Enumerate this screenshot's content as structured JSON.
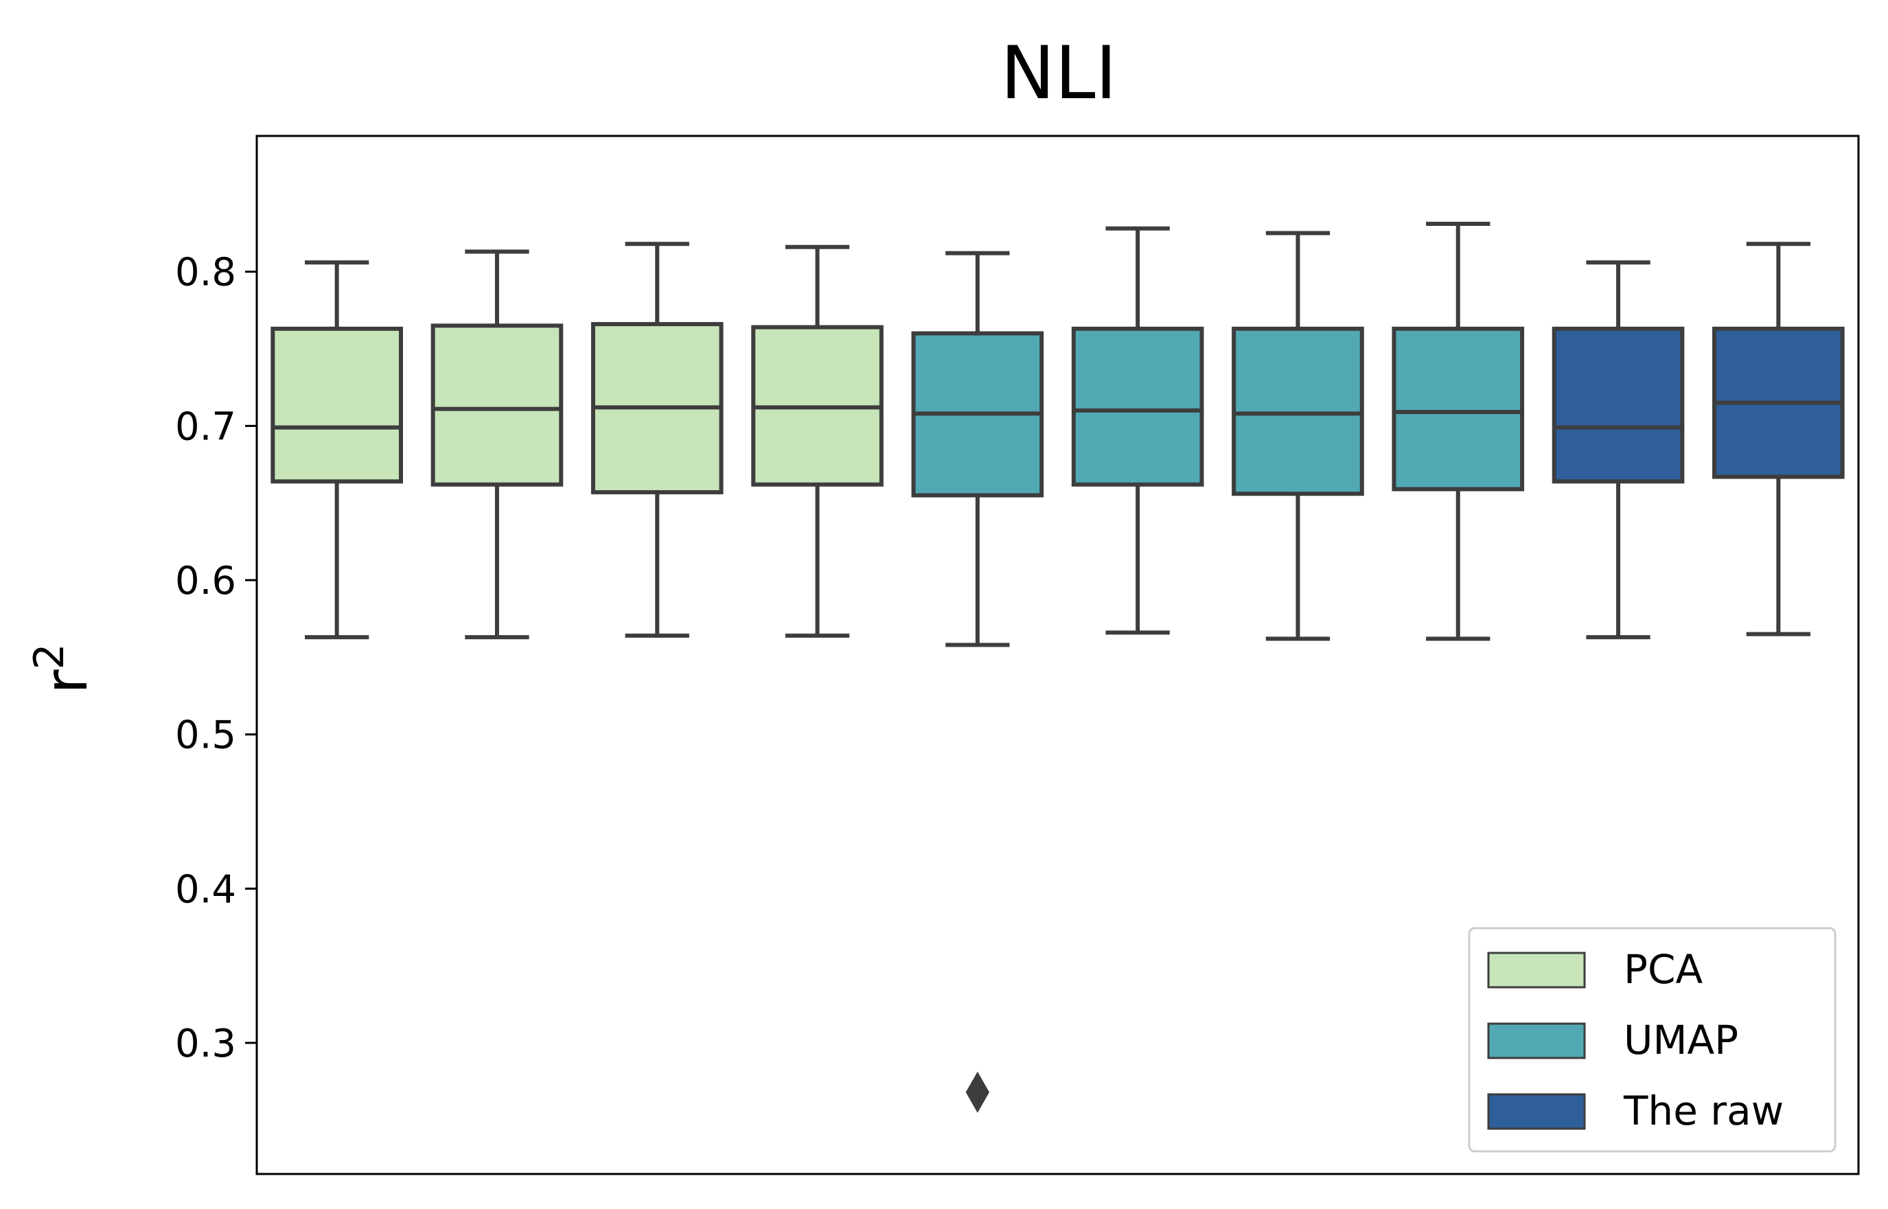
{
  "chart_data": {
    "type": "box",
    "title": "NLI",
    "xlabel": "",
    "ylabel": "r",
    "ylabel_superscript": "2",
    "ylim": [
      0.215,
      0.888
    ],
    "yticks": [
      0.3,
      0.4,
      0.5,
      0.6,
      0.7,
      0.8
    ],
    "ytick_labels": [
      "0.3",
      "0.4",
      "0.5",
      "0.6",
      "0.7",
      "0.8"
    ],
    "grid": false,
    "legend_position": "lower-right",
    "groups": [
      {
        "name": "PCA",
        "color": "#c7e5b9"
      },
      {
        "name": "UMAP",
        "color": "#52a9b4"
      },
      {
        "name": "The raw",
        "color": "#2f5f9a"
      }
    ],
    "edge_color": "#3d3d3d",
    "boxes": [
      {
        "group": "PCA",
        "whisker_low": 0.563,
        "q1": 0.664,
        "median": 0.699,
        "q3": 0.763,
        "whisker_high": 0.806,
        "outliers": []
      },
      {
        "group": "PCA",
        "whisker_low": 0.563,
        "q1": 0.662,
        "median": 0.711,
        "q3": 0.765,
        "whisker_high": 0.813,
        "outliers": []
      },
      {
        "group": "PCA",
        "whisker_low": 0.564,
        "q1": 0.657,
        "median": 0.712,
        "q3": 0.766,
        "whisker_high": 0.818,
        "outliers": []
      },
      {
        "group": "PCA",
        "whisker_low": 0.564,
        "q1": 0.662,
        "median": 0.712,
        "q3": 0.764,
        "whisker_high": 0.816,
        "outliers": []
      },
      {
        "group": "UMAP",
        "whisker_low": 0.558,
        "q1": 0.655,
        "median": 0.708,
        "q3": 0.76,
        "whisker_high": 0.812,
        "outliers": [
          0.268
        ]
      },
      {
        "group": "UMAP",
        "whisker_low": 0.566,
        "q1": 0.662,
        "median": 0.71,
        "q3": 0.763,
        "whisker_high": 0.828,
        "outliers": []
      },
      {
        "group": "UMAP",
        "whisker_low": 0.562,
        "q1": 0.656,
        "median": 0.708,
        "q3": 0.763,
        "whisker_high": 0.825,
        "outliers": []
      },
      {
        "group": "UMAP",
        "whisker_low": 0.562,
        "q1": 0.659,
        "median": 0.709,
        "q3": 0.763,
        "whisker_high": 0.831,
        "outliers": []
      },
      {
        "group": "The raw",
        "whisker_low": 0.563,
        "q1": 0.664,
        "median": 0.699,
        "q3": 0.763,
        "whisker_high": 0.806,
        "outliers": []
      },
      {
        "group": "The raw",
        "whisker_low": 0.565,
        "q1": 0.667,
        "median": 0.715,
        "q3": 0.763,
        "whisker_high": 0.818,
        "outliers": []
      }
    ]
  }
}
